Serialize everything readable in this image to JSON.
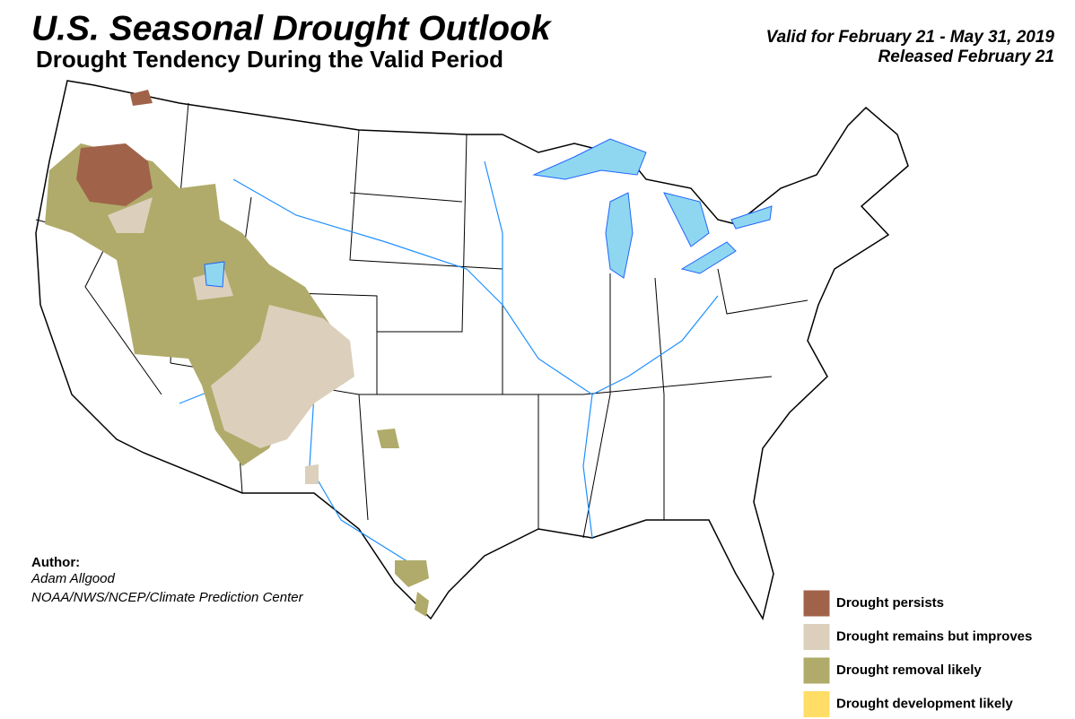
{
  "header": {
    "title": "U.S. Seasonal Drought Outlook",
    "subtitle": "Drought Tendency During the Valid Period",
    "valid": "Valid for February 21 - May 31, 2019",
    "released": "Released February 21"
  },
  "author": {
    "label": "Author:",
    "name": "Adam Allgood",
    "organization": "NOAA/NWS/NCEP/Climate Prediction Center"
  },
  "legend": [
    {
      "label": "Drought persists",
      "color": "#a0634a"
    },
    {
      "label": "Drought remains but improves",
      "color": "#dcd0bc"
    },
    {
      "label": "Drought removal likely",
      "color": "#b0ab6a"
    },
    {
      "label": "Drought development likely",
      "color": "#ffdd66"
    }
  ]
}
